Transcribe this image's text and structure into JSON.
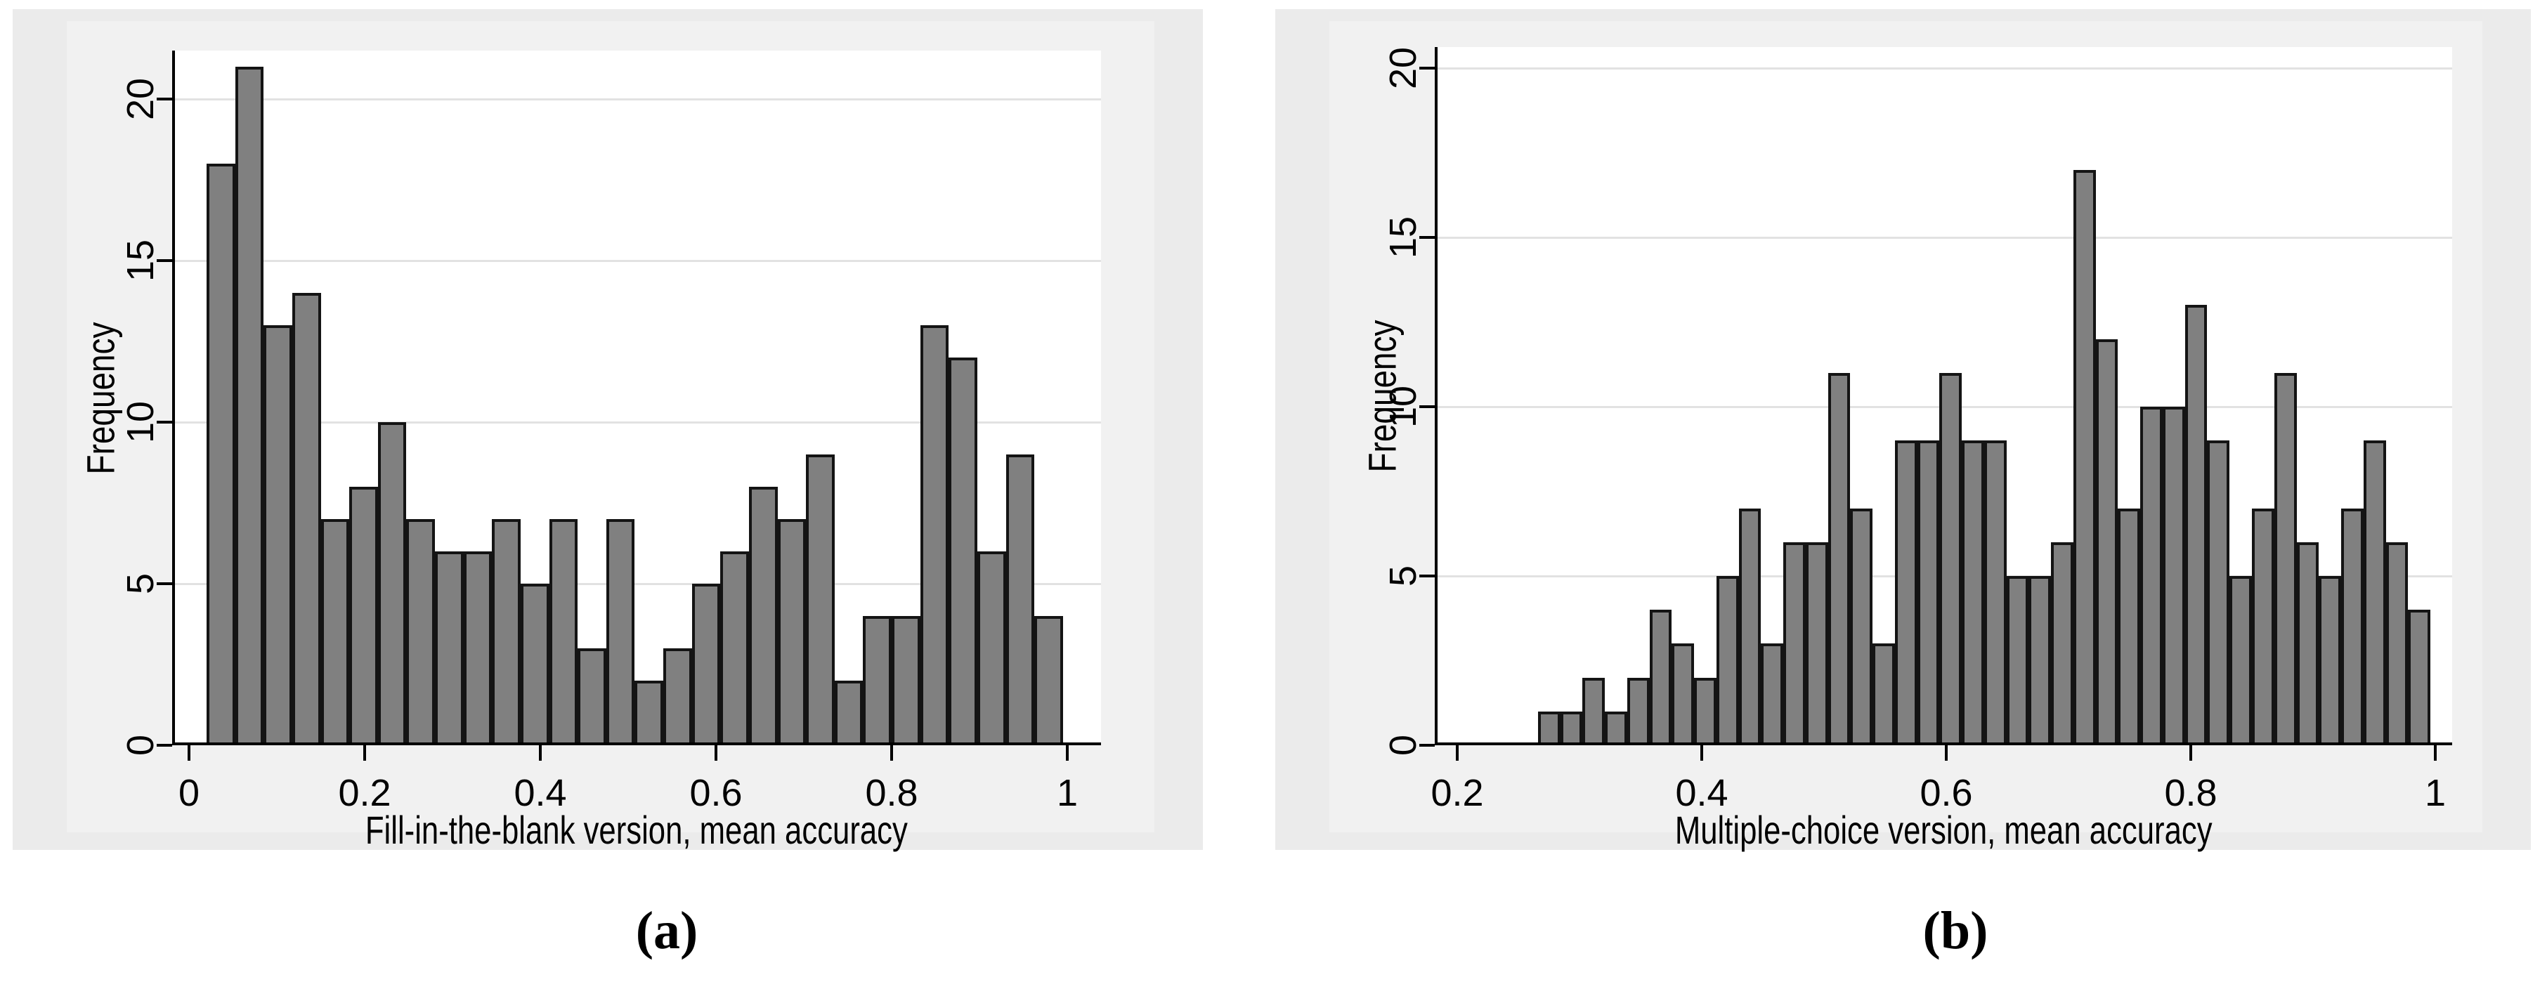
{
  "figure": {
    "description": "Two side-by-side Stata-style frequency histograms",
    "colors": {
      "page_bg": "#ffffff",
      "panel_bg": "#ebebeb",
      "plot_region_bg": "#f1f1f1",
      "plot_bg": "#ffffff",
      "bar_fill": "#808080",
      "bar_border": "#141414",
      "gridline": "#e2e2e2",
      "axis": "#000000",
      "text": "#000000"
    }
  },
  "chart_data": [
    {
      "type": "bar",
      "subtype": "histogram",
      "caption": "(a)",
      "xlabel": "Fill-in-the-blank version, mean accuracy",
      "ylabel": "Frequency",
      "x_ticks": [
        0,
        0.2,
        0.4,
        0.6,
        0.8,
        1
      ],
      "x_tick_labels": [
        "0",
        "0.2",
        "0.4",
        "0.6",
        "0.8",
        "1"
      ],
      "y_ticks": [
        0,
        5,
        10,
        15,
        20
      ],
      "y_tick_labels": [
        "0",
        "5",
        "10",
        "15",
        "20"
      ],
      "ylim": [
        0,
        21.5
      ],
      "xlim": [
        -0.019,
        1.039
      ],
      "grid": "horizontal",
      "legend": "none",
      "bin_start": 0.02,
      "bin_width": 0.0325,
      "frequencies": [
        18,
        21,
        13,
        14,
        7,
        8,
        10,
        7,
        6,
        6,
        7,
        5,
        7,
        3,
        7,
        2,
        3,
        5,
        6,
        8,
        7,
        9,
        2,
        4,
        4,
        13,
        12,
        6,
        9,
        4
      ]
    },
    {
      "type": "bar",
      "subtype": "histogram",
      "caption": "(b)",
      "xlabel": "Multiple-choice version, mean accuracy",
      "ylabel": "Frequency",
      "x_ticks": [
        0.2,
        0.4,
        0.6,
        0.8,
        1
      ],
      "x_tick_labels": [
        "0.2",
        "0.4",
        "0.6",
        "0.8",
        "1"
      ],
      "y_ticks": [
        0,
        5,
        10,
        15,
        20
      ],
      "y_tick_labels": [
        "0",
        "5",
        "10",
        "15",
        "20"
      ],
      "ylim": [
        0,
        20.6
      ],
      "xlim": [
        0.182,
        1.015
      ],
      "grid": "horizontal",
      "legend": "none",
      "bin_start": 0.266,
      "bin_width": 0.01825,
      "frequencies": [
        1,
        1,
        2,
        1,
        2,
        4,
        3,
        2,
        5,
        7,
        3,
        6,
        6,
        11,
        7,
        3,
        9,
        9,
        11,
        9,
        9,
        5,
        5,
        6,
        17,
        12,
        7,
        10,
        10,
        13,
        9,
        5,
        7,
        11,
        6,
        5,
        7,
        9,
        6,
        4
      ]
    }
  ]
}
